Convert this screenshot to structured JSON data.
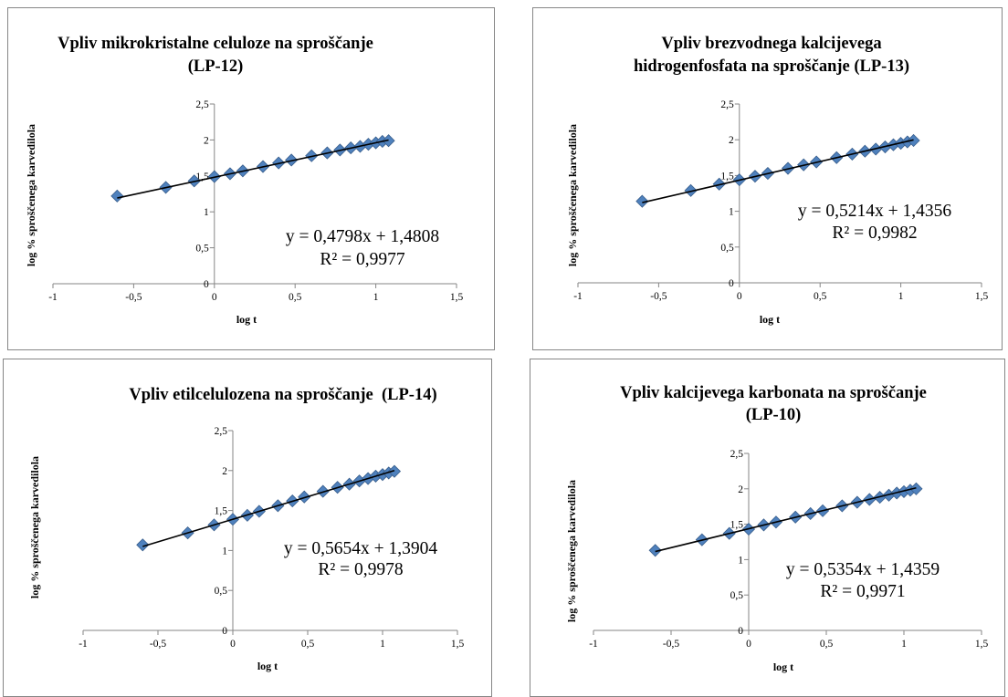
{
  "chart_data": [
    {
      "type": "scatter",
      "title": [
        "Vpliv mikrokristalne celuloze na sproščanje",
        "(LP-12)"
      ],
      "xlabel": "log t",
      "ylabel": "log % sproščenega karvedilola",
      "xlim": [
        -1,
        1.5
      ],
      "ylim": [
        0,
        2.5
      ],
      "xticks": [
        -1,
        -0.5,
        0,
        0.5,
        1,
        1.5
      ],
      "xtick_labels": [
        "-1",
        "-0,5",
        "0",
        "0,5",
        "1",
        "1,5"
      ],
      "yticks": [
        0,
        0.5,
        1,
        1.5,
        2,
        2.5
      ],
      "ytick_labels": [
        "0",
        "0,5",
        "1",
        "1,5",
        "2",
        "2,5"
      ],
      "grid": false,
      "legend": "none",
      "marker": "diamond",
      "marker_color": "#4F81BD",
      "series": [
        {
          "x": [
            -0.602,
            -0.301,
            -0.125,
            0,
            0.097,
            0.176,
            0.301,
            0.398,
            0.477,
            0.602,
            0.699,
            0.778,
            0.845,
            0.903,
            0.954,
            1.0,
            1.041,
            1.079
          ],
          "y": [
            1.22,
            1.34,
            1.43,
            1.49,
            1.53,
            1.57,
            1.63,
            1.68,
            1.72,
            1.78,
            1.82,
            1.86,
            1.89,
            1.91,
            1.94,
            1.96,
            1.98,
            1.99
          ]
        }
      ],
      "trendline": {
        "type": "linear",
        "slope": 0.4798,
        "intercept": 1.4808,
        "r_squared": 0.9977,
        "equation": "y = 0,4798x + 1,4808",
        "r2_label": "R² = 0,9977",
        "color": "#000000"
      }
    },
    {
      "type": "scatter",
      "title": [
        "Vpliv brezvodnega kalcijevega",
        "hidrogenfosfata na sproščanje (LP-13)"
      ],
      "xlabel": "log t",
      "ylabel": "log % sproščenega karvedilola",
      "xlim": [
        -1,
        1.5
      ],
      "ylim": [
        0,
        2.5
      ],
      "xticks": [
        -1,
        -0.5,
        0,
        0.5,
        1,
        1.5
      ],
      "xtick_labels": [
        "-1",
        "-0,5",
        "0",
        "0,5",
        "1",
        "1,5"
      ],
      "yticks": [
        0,
        0.5,
        1,
        1.5,
        2,
        2.5
      ],
      "ytick_labels": [
        "0",
        "0,5",
        "1",
        "1,5",
        "2",
        "2,5"
      ],
      "grid": false,
      "legend": "none",
      "marker": "diamond",
      "marker_color": "#4F81BD",
      "series": [
        {
          "x": [
            -0.602,
            -0.301,
            -0.125,
            0,
            0.097,
            0.176,
            0.301,
            0.398,
            0.477,
            0.602,
            0.699,
            0.778,
            0.845,
            0.903,
            0.954,
            1.0,
            1.041,
            1.079
          ],
          "y": [
            1.14,
            1.29,
            1.38,
            1.44,
            1.49,
            1.53,
            1.6,
            1.65,
            1.69,
            1.75,
            1.8,
            1.84,
            1.87,
            1.9,
            1.93,
            1.95,
            1.97,
            1.99
          ]
        }
      ],
      "trendline": {
        "type": "linear",
        "slope": 0.5214,
        "intercept": 1.4356,
        "r_squared": 0.9982,
        "equation": "y = 0,5214x + 1,4356",
        "r2_label": "R² = 0,9982",
        "color": "#000000"
      }
    },
    {
      "type": "scatter",
      "title": [
        "Vpliv etilcelulozena na sproščanje  (LP-14)"
      ],
      "xlabel": "log t",
      "ylabel": "log % sproščenega karvedilola",
      "xlim": [
        -1,
        1.5
      ],
      "ylim": [
        0,
        2.5
      ],
      "xticks": [
        -1,
        -0.5,
        0,
        0.5,
        1,
        1.5
      ],
      "xtick_labels": [
        "-1",
        "-0,5",
        "0",
        "0,5",
        "1",
        "1,5"
      ],
      "yticks": [
        0,
        0.5,
        1,
        1.5,
        2,
        2.5
      ],
      "ytick_labels": [
        "0",
        "0,5",
        "1",
        "1,5",
        "2",
        "2,5"
      ],
      "grid": false,
      "legend": "none",
      "marker": "diamond",
      "marker_color": "#4F81BD",
      "series": [
        {
          "x": [
            -0.602,
            -0.301,
            -0.125,
            0,
            0.097,
            0.176,
            0.301,
            0.398,
            0.477,
            0.602,
            0.699,
            0.778,
            0.845,
            0.903,
            0.954,
            1.0,
            1.041,
            1.079
          ],
          "y": [
            1.07,
            1.22,
            1.32,
            1.39,
            1.44,
            1.49,
            1.56,
            1.62,
            1.67,
            1.74,
            1.79,
            1.83,
            1.87,
            1.9,
            1.93,
            1.95,
            1.97,
            1.99
          ]
        }
      ],
      "trendline": {
        "type": "linear",
        "slope": 0.5654,
        "intercept": 1.3904,
        "r_squared": 0.9978,
        "equation": "y = 0,5654x + 1,3904",
        "r2_label": "R² = 0,9978",
        "color": "#000000"
      }
    },
    {
      "type": "scatter",
      "title": [
        "Vpliv kalcijevega karbonata na sproščanje",
        "(LP-10)"
      ],
      "xlabel": "log t",
      "ylabel": "log % sproščenega karvedilola",
      "xlim": [
        -1,
        1.5
      ],
      "ylim": [
        0,
        2.5
      ],
      "xticks": [
        -1,
        -0.5,
        0,
        0.5,
        1,
        1.5
      ],
      "xtick_labels": [
        "-1",
        "-0,5",
        "0",
        "0,5",
        "1",
        "1,5"
      ],
      "yticks": [
        0,
        0.5,
        1,
        1.5,
        2,
        2.5
      ],
      "ytick_labels": [
        "0",
        "0,5",
        "1",
        "1,5",
        "2",
        "2,5"
      ],
      "grid": false,
      "legend": "none",
      "marker": "diamond",
      "marker_color": "#4F81BD",
      "series": [
        {
          "x": [
            -0.602,
            -0.301,
            -0.125,
            0,
            0.097,
            0.176,
            0.301,
            0.398,
            0.477,
            0.602,
            0.699,
            0.778,
            0.845,
            0.903,
            0.954,
            1.0,
            1.041,
            1.079
          ],
          "y": [
            1.13,
            1.28,
            1.37,
            1.43,
            1.49,
            1.53,
            1.6,
            1.65,
            1.69,
            1.76,
            1.81,
            1.85,
            1.88,
            1.91,
            1.94,
            1.96,
            1.98,
            2.0
          ]
        }
      ],
      "trendline": {
        "type": "linear",
        "slope": 0.5354,
        "intercept": 1.4359,
        "r_squared": 0.9971,
        "equation": "y = 0,5354x + 1,4359",
        "r2_label": "R² = 0,9971",
        "color": "#000000"
      }
    }
  ]
}
